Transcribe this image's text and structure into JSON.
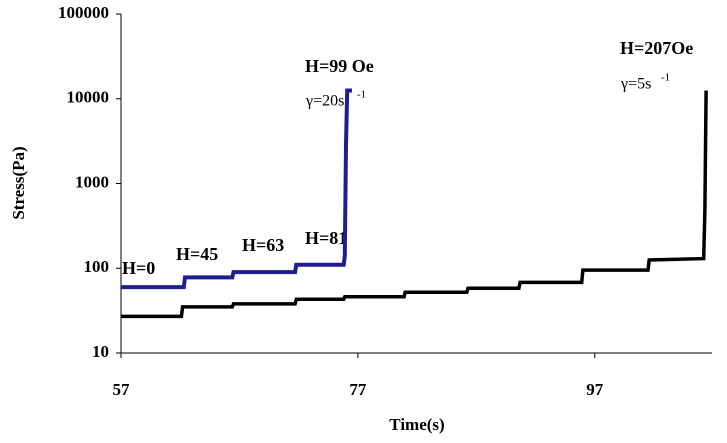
{
  "chart_data": {
    "type": "line",
    "x_label": "Time(s)",
    "y_label": "Stress(Pa)",
    "xlim": [
      57,
      106.9
    ],
    "xticks": [
      57,
      77,
      97
    ],
    "ylim": [
      10,
      100000
    ],
    "yticks": [
      10,
      100,
      1000,
      10000,
      100000
    ],
    "y_scale": "log",
    "series": [
      {
        "color": "#1f1f8f",
        "x": [
          57,
          62.3,
          62.4,
          66.4,
          66.5,
          71.7,
          71.8,
          75.8,
          75.9,
          76.0,
          76.1,
          76.5
        ],
        "values": [
          60,
          60,
          78,
          78,
          90,
          90,
          110,
          110,
          140,
          2900,
          12500,
          12500
        ]
      },
      {
        "color": "#000000",
        "x": [
          57,
          62.1,
          62.2,
          66.4,
          66.5,
          71.7,
          71.8,
          75.8,
          75.9,
          80.9,
          81,
          86.2,
          86.3,
          90.6,
          90.7,
          95.9,
          96,
          101.5,
          101.6,
          106.2,
          106.3,
          106.4
        ],
        "values": [
          27,
          27,
          35,
          35,
          38,
          38,
          43,
          43,
          46,
          46,
          52,
          52,
          58,
          58,
          68,
          68,
          95,
          95,
          125,
          130,
          500,
          12500
        ]
      }
    ],
    "annotations": [
      "H=0",
      "H=45",
      "H=63",
      "H=81",
      "H=99 Oe",
      "γ=20s",
      "-1",
      "H=207Oe",
      "γ=5s",
      "-1"
    ]
  }
}
